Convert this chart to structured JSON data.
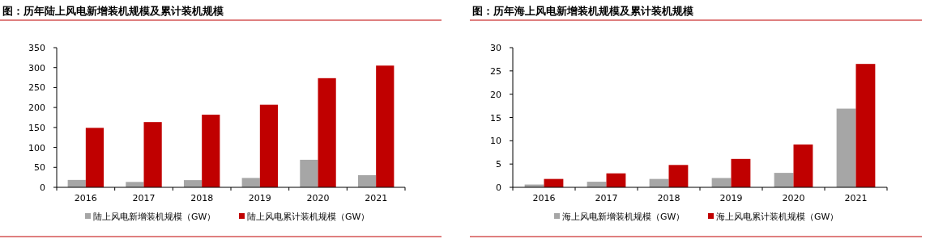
{
  "chart_data": [
    {
      "type": "bar",
      "title": "图：历年陆上风电新增装机规模及累计装机规模",
      "categories": [
        "2016",
        "2017",
        "2018",
        "2019",
        "2020",
        "2021"
      ],
      "series": [
        {
          "name": "陆上风电新增装机规模（GW）",
          "color": "#a6a6a6",
          "values": [
            18.5,
            13.5,
            18,
            23.5,
            69,
            30.5
          ]
        },
        {
          "name": "陆上风电累计装机规模（GW）",
          "color": "#c00000",
          "values": [
            149,
            163.5,
            182,
            207,
            273.5,
            305
          ]
        }
      ],
      "ylim": [
        0,
        350
      ],
      "yticks": [
        0,
        50,
        100,
        150,
        200,
        250,
        300,
        350
      ],
      "legend": "bottom"
    },
    {
      "type": "bar",
      "title": "图：历年海上风电新增装机规模及累计装机规模",
      "categories": [
        "2016",
        "2017",
        "2018",
        "2019",
        "2020",
        "2021"
      ],
      "series": [
        {
          "name": "海上风电新增装机规模（GW）",
          "color": "#a6a6a6",
          "values": [
            0.6,
            1.2,
            1.8,
            2.0,
            3.1,
            16.9
          ]
        },
        {
          "name": "海上风电累计装机规模（GW）",
          "color": "#c00000",
          "values": [
            1.8,
            3.0,
            4.8,
            6.1,
            9.2,
            26.5
          ]
        }
      ],
      "ylim": [
        0,
        30
      ],
      "yticks": [
        0,
        5,
        10,
        15,
        20,
        25,
        30
      ],
      "legend": "bottom"
    }
  ]
}
